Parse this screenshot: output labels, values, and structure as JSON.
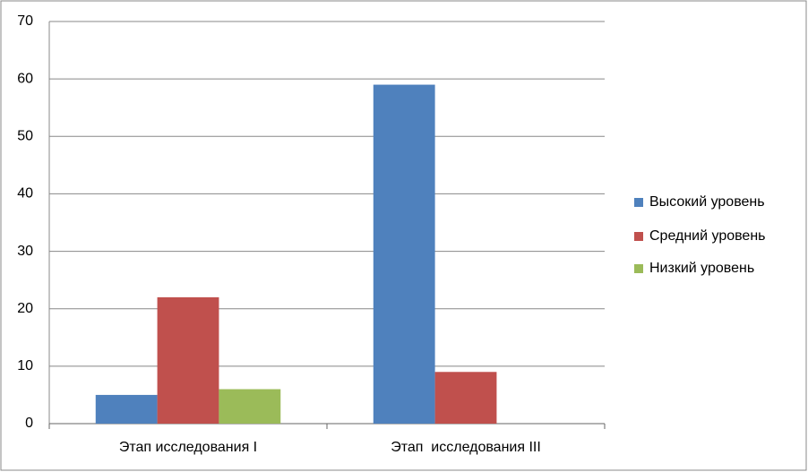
{
  "chart_data": {
    "type": "bar",
    "categories": [
      "Этап исследования I",
      "Этап  исследования III"
    ],
    "series": [
      {
        "name": "Высокий уровень",
        "color": "#4f81bd",
        "values": [
          5,
          59
        ]
      },
      {
        "name": "Средний уровень",
        "color": "#c0504d",
        "values": [
          22,
          9
        ]
      },
      {
        "name": "Низкий уровень",
        "color": "#9bbb59",
        "values": [
          6,
          0
        ]
      }
    ],
    "ylim": [
      0,
      70
    ],
    "yticks": [
      0,
      10,
      20,
      30,
      40,
      50,
      60,
      70
    ],
    "grid": true,
    "legend": "right"
  }
}
